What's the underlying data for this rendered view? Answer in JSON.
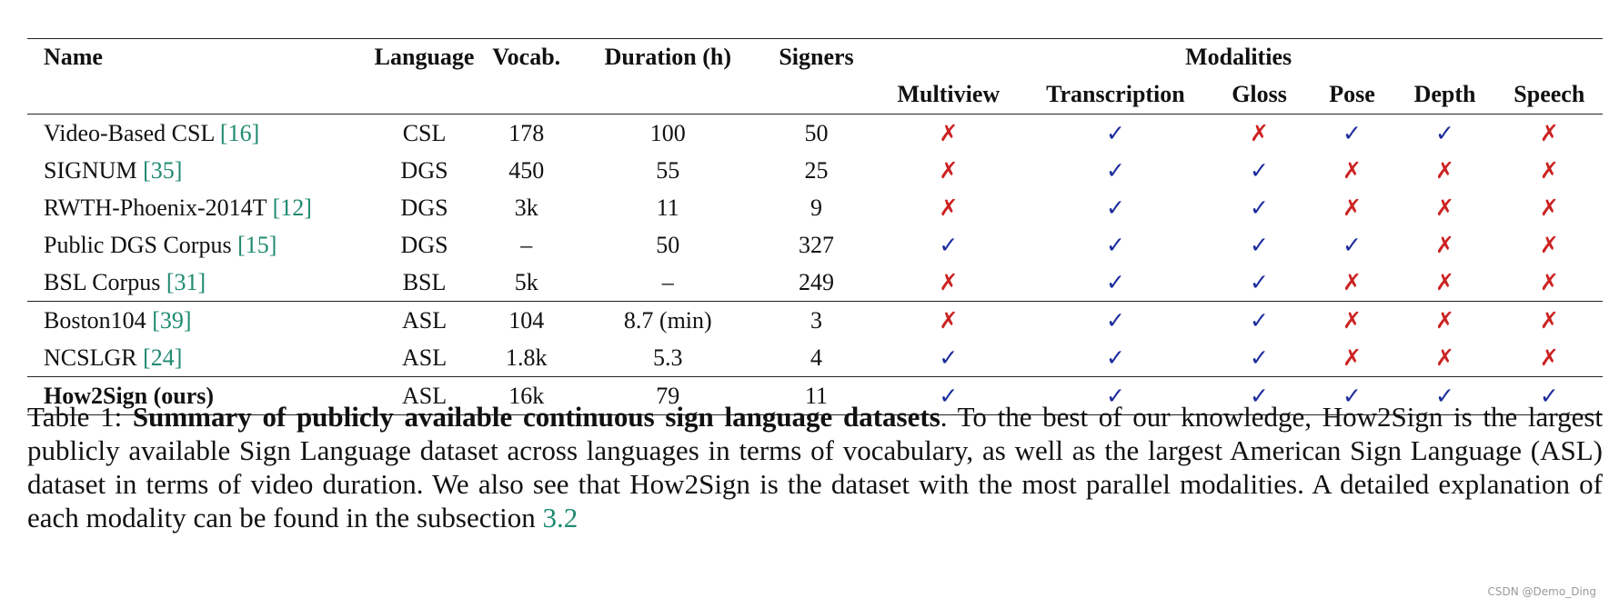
{
  "table": {
    "headers": {
      "name": "Name",
      "language": "Language",
      "vocab": "Vocab.",
      "duration": "Duration (h)",
      "signers": "Signers",
      "modalities_group": "Modalities",
      "modalities": [
        "Multiview",
        "Transcription",
        "Gloss",
        "Pose",
        "Depth",
        "Speech"
      ]
    },
    "rows": [
      {
        "name": "Video-Based CSL ",
        "cite": "[16]",
        "language": "CSL",
        "vocab": "178",
        "duration": "100",
        "signers": "50",
        "modalities": [
          false,
          true,
          false,
          true,
          true,
          false
        ],
        "bold": false
      },
      {
        "name": "SIGNUM ",
        "cite": "[35]",
        "language": "DGS",
        "vocab": "450",
        "duration": "55",
        "signers": "25",
        "modalities": [
          false,
          true,
          true,
          false,
          false,
          false
        ],
        "bold": false
      },
      {
        "name": "RWTH-Phoenix-2014T ",
        "cite": "[12]",
        "language": "DGS",
        "vocab": "3k",
        "duration": "11",
        "signers": "9",
        "modalities": [
          false,
          true,
          true,
          false,
          false,
          false
        ],
        "bold": false
      },
      {
        "name": "Public DGS Corpus ",
        "cite": "[15]",
        "language": "DGS",
        "vocab": "–",
        "duration": "50",
        "signers": "327",
        "modalities": [
          true,
          true,
          true,
          true,
          false,
          false
        ],
        "bold": false
      },
      {
        "name": "BSL Corpus ",
        "cite": "[31]",
        "language": "BSL",
        "vocab": "5k",
        "duration": "–",
        "signers": "249",
        "modalities": [
          false,
          true,
          true,
          false,
          false,
          false
        ],
        "bold": false
      },
      {
        "name": "Boston104 ",
        "cite": "[39]",
        "language": "ASL",
        "vocab": "104",
        "duration": "8.7 (min)",
        "signers": "3",
        "modalities": [
          false,
          true,
          true,
          false,
          false,
          false
        ],
        "bold": false
      },
      {
        "name": "NCSLGR ",
        "cite": "[24]",
        "language": "ASL",
        "vocab": "1.8k",
        "duration": "5.3",
        "signers": "4",
        "modalities": [
          true,
          true,
          true,
          false,
          false,
          false
        ],
        "bold": false
      },
      {
        "name": "How2Sign (ours)",
        "cite": "",
        "language": "ASL",
        "vocab": "16k",
        "duration": "79",
        "signers": "11",
        "modalities": [
          true,
          true,
          true,
          true,
          true,
          true
        ],
        "bold": true
      }
    ],
    "symbols": {
      "yes": "✓",
      "no": "✗"
    }
  },
  "caption": {
    "label": "Table 1: ",
    "title": "Summary of publicly available continuous sign language datasets",
    "body": ". To the best of our knowledge, How2Sign is the largest publicly available Sign Language dataset across languages in terms of vocabulary, as well as the largest American Sign Language (ASL) dataset in terms of video duration.  We also see that How2Sign is the dataset with the most parallel modalities. A detailed explanation of each modality can be found in the subsection ",
    "ref": "3.2"
  },
  "watermark": "CSDN @Demo_Ding",
  "colors": {
    "check": "#1b2b9c",
    "cross": "#cc2222",
    "citation": "#1f8a70"
  }
}
